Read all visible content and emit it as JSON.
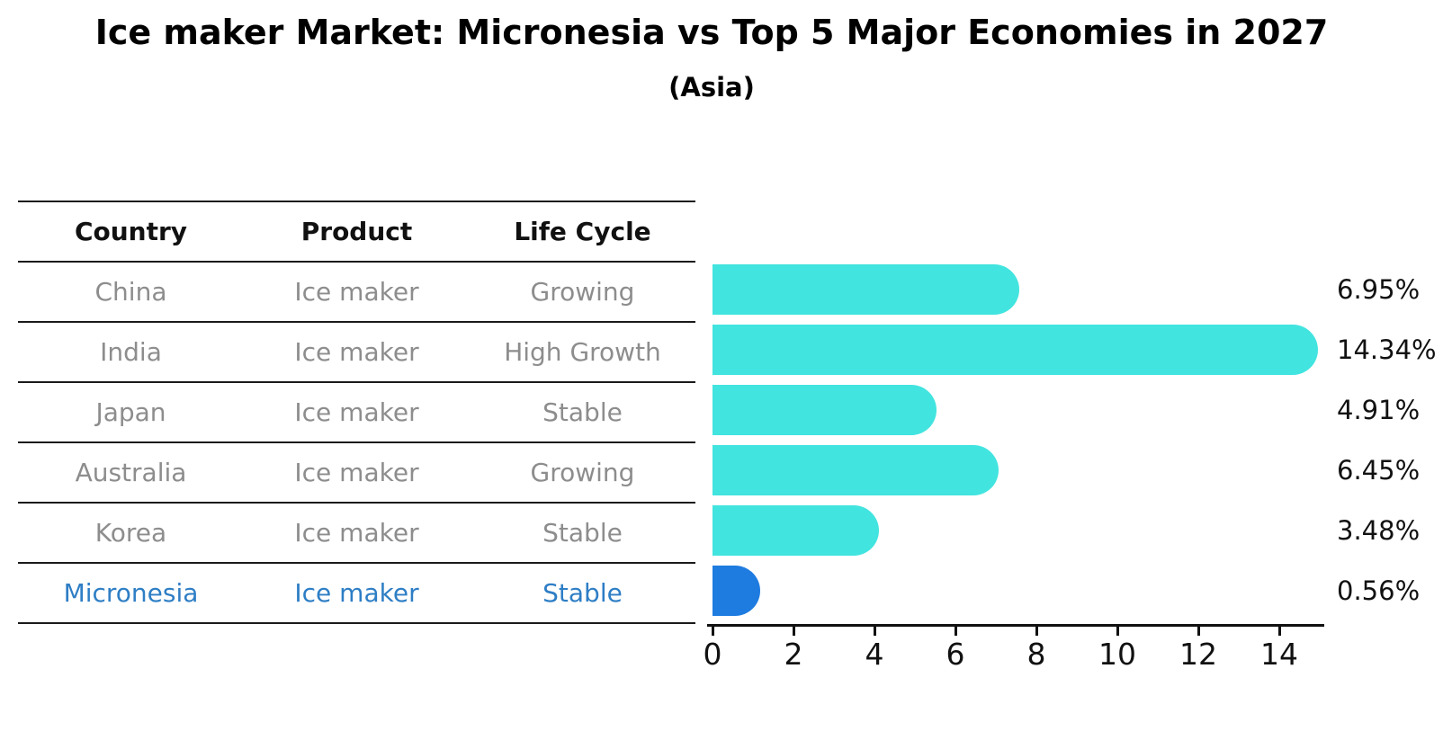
{
  "title": "Ice maker Market: Micronesia vs Top 5 Major Economies in 2027",
  "subtitle": "(Asia)",
  "table": {
    "headers": [
      "Country",
      "Product",
      "Life Cycle"
    ],
    "rows": [
      {
        "country": "China",
        "product": "Ice maker",
        "life_cycle": "Growing",
        "highlight": false
      },
      {
        "country": "India",
        "product": "Ice maker",
        "life_cycle": "High Growth",
        "highlight": false
      },
      {
        "country": "Japan",
        "product": "Ice maker",
        "life_cycle": "Stable",
        "highlight": false
      },
      {
        "country": "Australia",
        "product": "Ice maker",
        "life_cycle": "Growing",
        "highlight": false
      },
      {
        "country": "Korea",
        "product": "Ice maker",
        "life_cycle": "Stable",
        "highlight": false
      },
      {
        "country": "Micronesia",
        "product": "Ice maker",
        "life_cycle": "Stable",
        "highlight": true
      }
    ]
  },
  "chart_data": {
    "type": "bar",
    "orientation": "horizontal",
    "title": "Ice maker Market: Micronesia vs Top 5 Major Economies in 2027 (Asia)",
    "categories": [
      "China",
      "India",
      "Japan",
      "Australia",
      "Korea",
      "Micronesia"
    ],
    "values": [
      6.95,
      14.34,
      4.91,
      6.45,
      3.48,
      0.56
    ],
    "value_labels": [
      "6.95%",
      "14.34%",
      "4.91%",
      "6.45%",
      "3.48%",
      "0.56%"
    ],
    "highlight_index": 5,
    "xlabel": "",
    "ylabel": "",
    "xlim": [
      0,
      15.2
    ],
    "x_ticks": [
      0,
      2,
      4,
      6,
      8,
      10,
      12,
      14
    ],
    "grid": "off",
    "legend": "none"
  },
  "colors": {
    "bar": "#42e4df",
    "highlight_bar": "#1e7be0",
    "highlight_text": "#2e7ec5",
    "table_text": "#8d8d8d",
    "header_text": "#111111",
    "axis": "#111111"
  }
}
